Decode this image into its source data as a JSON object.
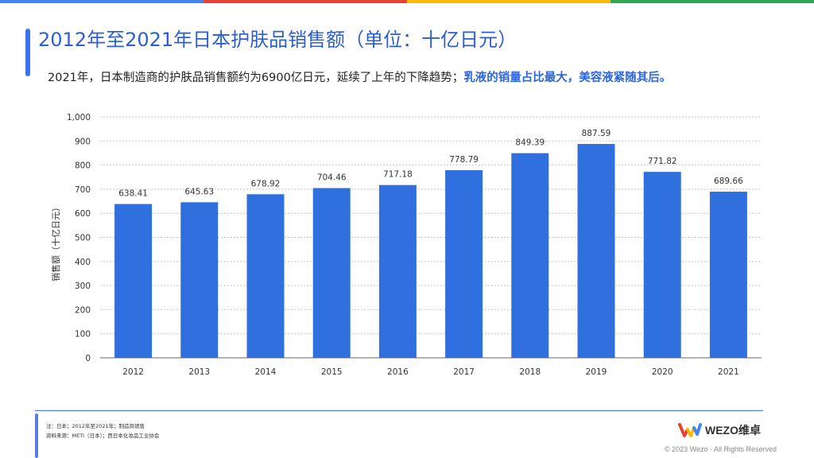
{
  "topbar_colors": [
    "#4285f4",
    "#ea4335",
    "#fbbc05",
    "#34a853"
  ],
  "title": "2012年至2021年日本护肤品销售额（单位：十亿日元）",
  "subtitle": {
    "plain": "2021年，日本制造商的护肤品销售额约为6900亿日元，延续了上年的下降趋势；",
    "highlight": "乳液的销量占比最大，美容液紧随其后。"
  },
  "footer": {
    "note": "注：日本；2012年至2021年；制造商销售",
    "source": "资料来源：METI（日本）；西日本化妆品工业协会",
    "logo_text": "WEZO维卓",
    "copyright": "© 2023 Wezo - All Rights Reserved"
  },
  "colors": {
    "bar": "#2f6fde",
    "accent": "#3b74e8",
    "title": "#2b5fd0"
  },
  "chart_data": {
    "type": "bar",
    "categories": [
      "2012",
      "2013",
      "2014",
      "2015",
      "2016",
      "2017",
      "2018",
      "2019",
      "2020",
      "2021"
    ],
    "values": [
      638.41,
      645.63,
      678.92,
      704.46,
      717.18,
      778.79,
      849.39,
      887.59,
      771.82,
      689.66
    ],
    "value_labels": [
      "638.41",
      "645.63",
      "678.92",
      "704.46",
      "717.18",
      "778.79",
      "849.39",
      "887.59",
      "771.82",
      "689.66"
    ],
    "ylabel": "销售额（十亿日元）",
    "xlabel": "",
    "ylim": [
      0,
      1000
    ],
    "yticks": [
      "0",
      "100",
      "200",
      "300",
      "400",
      "500",
      "600",
      "700",
      "800",
      "900",
      "1,000"
    ],
    "grid": true
  }
}
